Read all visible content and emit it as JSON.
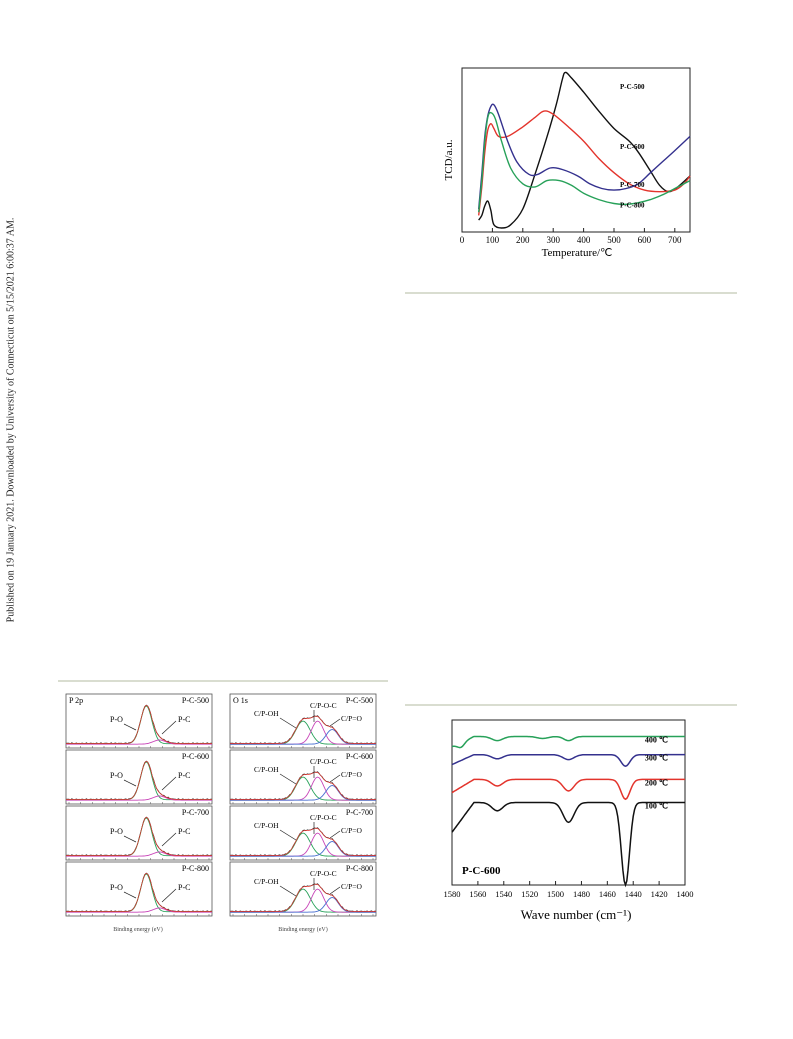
{
  "side_note": "Published on 19 January 2021. Downloaded by University of Connecticut on 5/15/2021 6:00:37 AM.",
  "colors": {
    "black": "#111111",
    "red": "#e3342c",
    "blue": "#34318e",
    "green": "#27a159",
    "rule": "#d9ddd0"
  },
  "chart_data": [
    {
      "type": "line",
      "xlabel": "Temperature/℃",
      "ylabel": "TCD/a.u.",
      "xlim": [
        0,
        750
      ],
      "xticks": [
        "0",
        "100",
        "200",
        "300",
        "400",
        "500",
        "600",
        "700"
      ],
      "grid": false,
      "series": [
        {
          "name": "P-C-500",
          "color": "#111111",
          "points": [
            [
              55,
              0.05
            ],
            [
              65,
              0.08
            ],
            [
              75,
              0.14
            ],
            [
              85,
              0.17
            ],
            [
              95,
              0.11
            ],
            [
              105,
              0.02
            ],
            [
              130,
              0.0
            ],
            [
              160,
              0.02
            ],
            [
              200,
              0.12
            ],
            [
              240,
              0.34
            ],
            [
              280,
              0.58
            ],
            [
              310,
              0.78
            ],
            [
              330,
              0.94
            ],
            [
              340,
              0.985
            ],
            [
              360,
              0.95
            ],
            [
              400,
              0.86
            ],
            [
              450,
              0.74
            ],
            [
              500,
              0.63
            ],
            [
              550,
              0.55
            ],
            [
              580,
              0.48
            ],
            [
              620,
              0.36
            ],
            [
              650,
              0.27
            ],
            [
              680,
              0.23
            ],
            [
              710,
              0.26
            ],
            [
              750,
              0.33
            ]
          ]
        },
        {
          "name": "P-C-600",
          "color": "#e3342c",
          "points": [
            [
              55,
              0.08
            ],
            [
              65,
              0.26
            ],
            [
              75,
              0.48
            ],
            [
              85,
              0.62
            ],
            [
              95,
              0.66
            ],
            [
              105,
              0.63
            ],
            [
              120,
              0.58
            ],
            [
              150,
              0.58
            ],
            [
              200,
              0.64
            ],
            [
              240,
              0.7
            ],
            [
              270,
              0.74
            ],
            [
              300,
              0.72
            ],
            [
              350,
              0.64
            ],
            [
              400,
              0.55
            ],
            [
              450,
              0.44
            ],
            [
              500,
              0.35
            ],
            [
              550,
              0.28
            ],
            [
              600,
              0.24
            ],
            [
              650,
              0.23
            ],
            [
              700,
              0.24
            ],
            [
              730,
              0.28
            ],
            [
              750,
              0.33
            ]
          ]
        },
        {
          "name": "P-C-700",
          "color": "#34318e",
          "points": [
            [
              55,
              0.12
            ],
            [
              65,
              0.34
            ],
            [
              75,
              0.58
            ],
            [
              85,
              0.71
            ],
            [
              95,
              0.77
            ],
            [
              105,
              0.78
            ],
            [
              120,
              0.72
            ],
            [
              150,
              0.55
            ],
            [
              180,
              0.42
            ],
            [
              220,
              0.34
            ],
            [
              250,
              0.34
            ],
            [
              290,
              0.38
            ],
            [
              330,
              0.37
            ],
            [
              380,
              0.33
            ],
            [
              420,
              0.28
            ],
            [
              460,
              0.25
            ],
            [
              500,
              0.24
            ],
            [
              540,
              0.25
            ],
            [
              580,
              0.28
            ],
            [
              620,
              0.35
            ],
            [
              660,
              0.42
            ],
            [
              700,
              0.49
            ],
            [
              750,
              0.58
            ]
          ]
        },
        {
          "name": "P-C-800",
          "color": "#27a159",
          "points": [
            [
              55,
              0.1
            ],
            [
              65,
              0.3
            ],
            [
              75,
              0.55
            ],
            [
              85,
              0.7
            ],
            [
              95,
              0.73
            ],
            [
              110,
              0.69
            ],
            [
              130,
              0.55
            ],
            [
              160,
              0.38
            ],
            [
              200,
              0.28
            ],
            [
              240,
              0.26
            ],
            [
              280,
              0.3
            ],
            [
              320,
              0.3
            ],
            [
              360,
              0.27
            ],
            [
              400,
              0.22
            ],
            [
              450,
              0.18
            ],
            [
              500,
              0.155
            ],
            [
              540,
              0.15
            ],
            [
              580,
              0.16
            ],
            [
              620,
              0.18
            ],
            [
              660,
              0.21
            ],
            [
              700,
              0.25
            ],
            [
              750,
              0.3
            ]
          ]
        }
      ]
    },
    {
      "type": "line",
      "title": "P-C-600",
      "xlabel": "Wave number",
      "xlabel_unit": "cm⁻¹",
      "xlim": [
        1400,
        1580
      ],
      "x_reversed": true,
      "xticks": [
        "1580",
        "1560",
        "1540",
        "1520",
        "1500",
        "1480",
        "1460",
        "1440",
        "1420",
        "1400"
      ],
      "grid": false,
      "series": [
        {
          "name": "400 ℃",
          "color": "#27a159",
          "baseline": 0.1,
          "tail_drop": 0.06,
          "dips": [
            [
              1573,
              0.03,
              4
            ],
            [
              1545,
              0.025,
              6
            ],
            [
              1510,
              0.012,
              6
            ],
            [
              1490,
              0.025,
              5
            ]
          ]
        },
        {
          "name": "300 ℃",
          "color": "#34318e",
          "baseline": 0.21,
          "tail_drop": 0.06,
          "dips": [
            [
              1545,
              0.025,
              6
            ],
            [
              1490,
              0.03,
              6
            ],
            [
              1446,
              0.07,
              5
            ]
          ]
        },
        {
          "name": "200 ℃",
          "color": "#e3342c",
          "baseline": 0.36,
          "tail_drop": 0.08,
          "dips": [
            [
              1545,
              0.04,
              6
            ],
            [
              1490,
              0.07,
              6
            ],
            [
              1446,
              0.12,
              5
            ]
          ]
        },
        {
          "name": "100 ℃",
          "color": "#111111",
          "baseline": 0.5,
          "tail_drop": 0.18,
          "dips": [
            [
              1545,
              0.05,
              6
            ],
            [
              1490,
              0.12,
              6
            ],
            [
              1446,
              0.5,
              4.5
            ]
          ]
        }
      ]
    },
    {
      "type": "line",
      "xlabel": "Binding energy (eV)",
      "panels_left": [
        {
          "tag": "P 2p",
          "sample": "P-C-500",
          "labels": [
            "P-O",
            "P-C"
          ]
        },
        {
          "tag": "",
          "sample": "P-C-600",
          "labels": [
            "P-O",
            "P-C"
          ]
        },
        {
          "tag": "",
          "sample": "P-C-700",
          "labels": [
            "P-O",
            "P-C"
          ]
        },
        {
          "tag": "",
          "sample": "P-C-800",
          "labels": [
            "P-O",
            "P-C"
          ]
        }
      ],
      "panels_right": [
        {
          "tag": "O 1s",
          "sample": "P-C-500",
          "labels": [
            "C/P-OH",
            "C/P-O-C",
            "C/P=O"
          ]
        },
        {
          "tag": "",
          "sample": "P-C-600",
          "labels": [
            "C/P-OH",
            "C/P-O-C",
            "C/P=O"
          ]
        },
        {
          "tag": "",
          "sample": "P-C-700",
          "labels": [
            "C/P-OH",
            "C/P-O-C",
            "C/P=O"
          ]
        },
        {
          "tag": "",
          "sample": "P-C-800",
          "labels": [
            "C/P-OH",
            "C/P-O-C",
            "C/P=O"
          ]
        }
      ]
    }
  ]
}
